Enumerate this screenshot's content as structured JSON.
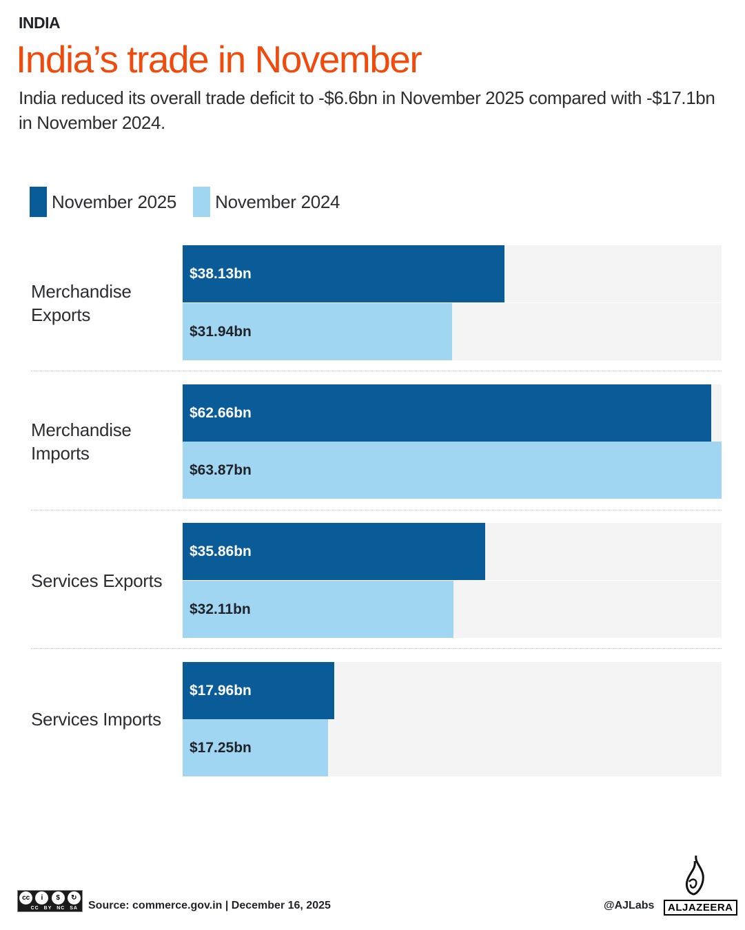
{
  "header": {
    "kicker": "INDIA",
    "title": "India’s trade in November",
    "subtitle": "India reduced its overall trade deficit to -$6.6bn in November 2025 compared with -$17.1bn in November 2024."
  },
  "chart_data": {
    "type": "bar",
    "orientation": "horizontal",
    "categories": [
      "Merchandise Exports",
      "Merchandise Imports",
      "Services Exports",
      "Services Imports"
    ],
    "series": [
      {
        "name": "November 2025",
        "color": "#0a5c99",
        "values": [
          38.13,
          62.66,
          35.86,
          17.96
        ],
        "labels": [
          "$38.13bn",
          "$62.66bn",
          "$35.86bn",
          "$17.96bn"
        ]
      },
      {
        "name": "November 2024",
        "color": "#a0d6f2",
        "values": [
          31.94,
          63.87,
          32.11,
          17.25
        ],
        "labels": [
          "$31.94bn",
          "$63.87bn",
          "$32.11bn",
          "$17.25bn"
        ]
      }
    ],
    "unit": "US$ billion",
    "xlim": [
      0,
      63.87
    ],
    "legend": "top-left",
    "grid": false
  },
  "category_lines": [
    [
      "Merchandise",
      "Exports"
    ],
    [
      "Merchandise",
      "Imports"
    ],
    [
      "Services Exports"
    ],
    [
      "Services Imports"
    ]
  ],
  "footer": {
    "license": "CC BY NC SA",
    "source": "Source:  commerce.gov.in   |   December 16, 2025",
    "handle": "@AJLabs",
    "brand": "ALJAZEERA"
  }
}
